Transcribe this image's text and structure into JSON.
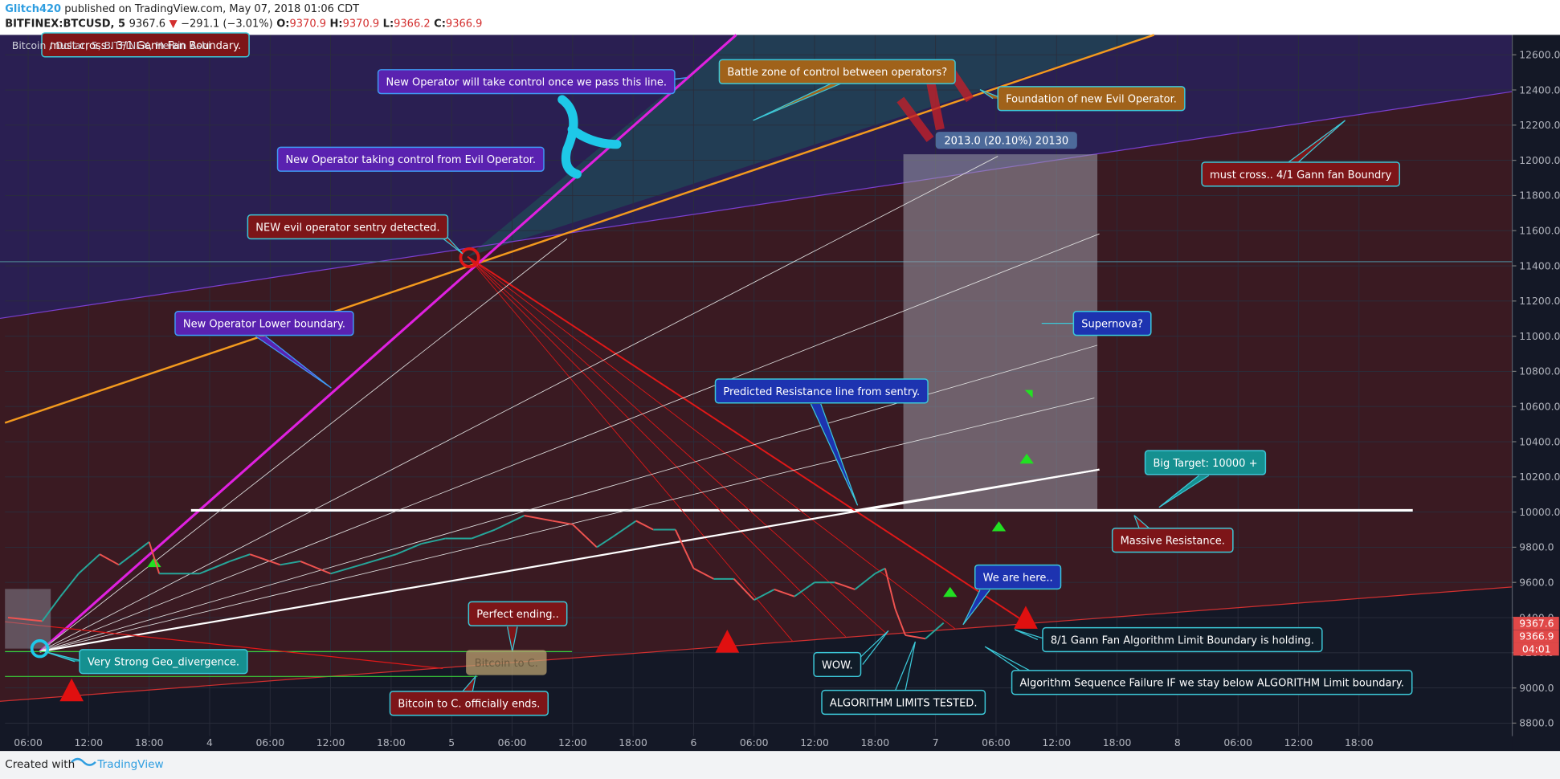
{
  "header": {
    "author": "Glitch420",
    "published": " published on TradingView.com, May 07, 2018 01:06 CDT",
    "symbol": "BITFINEX:BTCUSD, 5",
    "last": "9367.6",
    "arrow": "▼",
    "change": "−291.1 (−3.01%)",
    "open_label": "O:",
    "open": "9370.9",
    "high_label": "H:",
    "high": "9370.9",
    "low_label": "L:",
    "low": "9366.2",
    "close_label": "C:",
    "close": "9366.9"
  },
  "footer": {
    "created": "Created with",
    "brand": "TradingView"
  },
  "chart_data": {
    "type": "line",
    "x": [
      4,
      7.4,
      9.2,
      11,
      13.1,
      15,
      18,
      19,
      23,
      26,
      28,
      31,
      33,
      36,
      39,
      42.5,
      45,
      47.4,
      50,
      52.3,
      55.2,
      58,
      60,
      62.4,
      64,
      66.3,
      68,
      70.2,
      72,
      74,
      76,
      78,
      80,
      82,
      84,
      86,
      88,
      90,
      91,
      92,
      93,
      95,
      96.8
    ],
    "series": [
      {
        "name": "Bitcoin / Dollar, 5, BITFINEX, Heikin Ashi",
        "color": "#26a69a",
        "values": [
          9400,
          9380,
          9520,
          9650,
          9760,
          9700,
          9830,
          9650,
          9650,
          9720,
          9760,
          9700,
          9720,
          9650,
          9700,
          9760,
          9820,
          9850,
          9850,
          9900,
          9980,
          9950,
          9930,
          9800,
          9860,
          9950,
          9900,
          9900,
          9680,
          9620,
          9620,
          9500,
          9560,
          9520,
          9600,
          9600,
          9560,
          9650,
          9680,
          9450,
          9300,
          9280,
          9370
        ]
      }
    ],
    "xlim": [
      3.7,
      153.2
    ],
    "ylim": [
      8726,
      12713
    ],
    "xticks": [
      {
        "value": 6,
        "label": "06:00"
      },
      {
        "value": 12,
        "label": "12:00"
      },
      {
        "value": 18,
        "label": "18:00"
      },
      {
        "value": 24,
        "label": "4"
      },
      {
        "value": 30,
        "label": "06:00"
      },
      {
        "value": 36,
        "label": "12:00"
      },
      {
        "value": 42,
        "label": "18:00"
      },
      {
        "value": 48,
        "label": "5"
      },
      {
        "value": 54,
        "label": "06:00"
      },
      {
        "value": 60,
        "label": "12:00"
      },
      {
        "value": 66,
        "label": "18:00"
      },
      {
        "value": 72,
        "label": "6"
      },
      {
        "value": 78,
        "label": "06:00"
      },
      {
        "value": 84,
        "label": "12:00"
      },
      {
        "value": 90,
        "label": "18:00"
      },
      {
        "value": 96,
        "label": "7"
      },
      {
        "value": 102,
        "label": "06:00"
      },
      {
        "value": 108,
        "label": "12:00"
      },
      {
        "value": 114,
        "label": "18:00"
      },
      {
        "value": 120,
        "label": "8"
      },
      {
        "value": 126,
        "label": "06:00"
      },
      {
        "value": 132,
        "label": "12:00"
      },
      {
        "value": 138,
        "label": "18:00"
      }
    ],
    "yticks": [
      {
        "value": 8800,
        "label": "8800.0"
      },
      {
        "value": 9000,
        "label": "9000.0"
      },
      {
        "value": 9200,
        "label": "9200.0"
      },
      {
        "value": 9400,
        "label": "9400.0"
      },
      {
        "value": 9600,
        "label": "9600.0"
      },
      {
        "value": 9800,
        "label": "9800.0"
      },
      {
        "value": 10000,
        "label": "10000.0"
      },
      {
        "value": 10200,
        "label": "10200.0"
      },
      {
        "value": 10400,
        "label": "10400.0"
      },
      {
        "value": 10600,
        "label": "10600.0"
      },
      {
        "value": 10800,
        "label": "10800.0"
      },
      {
        "value": 11000,
        "label": "11000.0"
      },
      {
        "value": 11200,
        "label": "11200.0"
      },
      {
        "value": 11400,
        "label": "11400.0"
      },
      {
        "value": 11600,
        "label": "11600.0"
      },
      {
        "value": 11800,
        "label": "11800.0"
      },
      {
        "value": 12000,
        "label": "12000.0"
      },
      {
        "value": 12200,
        "label": "12200.0"
      },
      {
        "value": 12400,
        "label": "12400.0"
      },
      {
        "value": 12600,
        "label": "12600.0"
      }
    ],
    "grid": true,
    "price_tags": [
      9367.6,
      9366.9
    ],
    "countdown": "04:01",
    "annotations": [
      "must cross.. 3/1 Gann Fan Boundary.",
      "New Operator will take control once we pass this line.",
      "Battle zone of control between operators?",
      "Foundation of new Evil Operator.",
      "2013.0 (20.10%) 20130",
      "must cross.. 4/1 Gann fan Boundry",
      "New Operator taking control from Evil Operator.",
      "NEW evil operator sentry detected.",
      "New Operator Lower boundary.",
      "Supernova?",
      "Predicted Resistance line from sentry.",
      "Big Target: 10000 +",
      "Massive Resistance.",
      "We are here..",
      "Perfect ending..",
      "Bitcoin to C.",
      "Very Strong Geo_divergence.",
      "8/1 Gann Fan Algorithm Limit Boundary is holding.",
      "WOW.",
      "Algorithm Sequence Failure IF we stay below ALGORITHM Limit boundary.",
      "ALGORITHM LIMITS TESTED.",
      "Bitcoin to C. officially ends."
    ]
  }
}
